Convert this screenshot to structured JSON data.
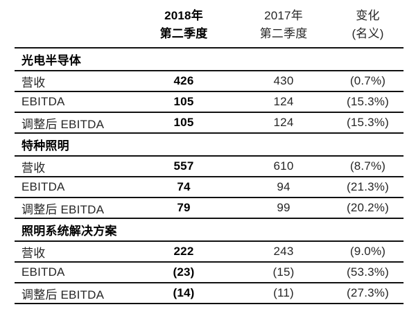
{
  "page": {
    "background": "#ffffff"
  },
  "table": {
    "rule_color": "#111111",
    "text_color": "#262626",
    "bold_text_color": "#000000",
    "header": {
      "cols": [
        {
          "line1": "2018年",
          "line2": "第二季度",
          "emphasis": true
        },
        {
          "line1": "2017年",
          "line2": "第二季度",
          "emphasis": false
        },
        {
          "line1": "变化",
          "line2": "(名义)",
          "emphasis": false
        }
      ]
    },
    "sections": [
      {
        "title": "光电半导体",
        "rows": [
          {
            "label": "营收",
            "v2018": "426",
            "v2017": "430",
            "change": "(0.7%)"
          },
          {
            "label": "EBITDA",
            "v2018": "105",
            "v2017": "124",
            "change": "(15.3%)"
          },
          {
            "label": "调整后 EBITDA",
            "v2018": "105",
            "v2017": "124",
            "change": "(15.3%)"
          }
        ]
      },
      {
        "title": "特种照明",
        "rows": [
          {
            "label": "营收",
            "v2018": "557",
            "v2017": "610",
            "change": "(8.7%)"
          },
          {
            "label": "EBITDA",
            "v2018": "74",
            "v2017": "94",
            "change": "(21.3%)"
          },
          {
            "label": "调整后 EBITDA",
            "v2018": "79",
            "v2017": "99",
            "change": "(20.2%)"
          }
        ]
      },
      {
        "title": "照明系统解决方案",
        "rows": [
          {
            "label": "营收",
            "v2018": "222",
            "v2017": "243",
            "change": "(9.0%)"
          },
          {
            "label": "EBITDA",
            "v2018": "(23)",
            "v2017": "(15)",
            "change": "(53.3%)"
          },
          {
            "label": "调整后 EBITDA",
            "v2018": "(14)",
            "v2017": "(11)",
            "change": "(27.3%)"
          }
        ]
      }
    ]
  }
}
